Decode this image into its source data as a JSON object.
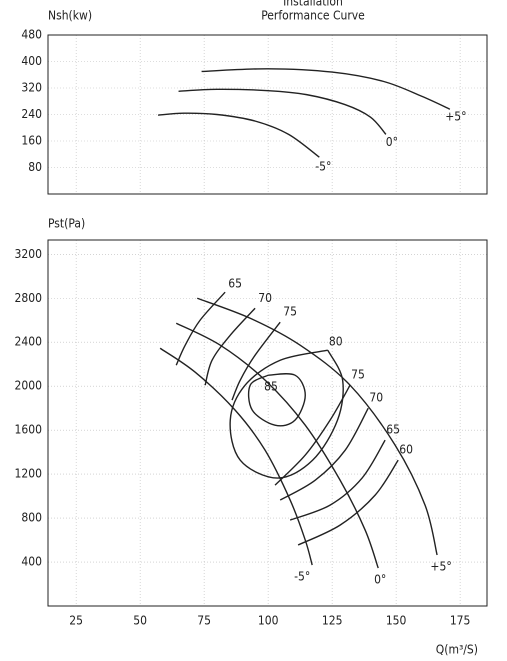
{
  "chart_data": [
    {
      "type": "line",
      "title": "Installation",
      "subtitle": "Performance Curve",
      "ylabel": "Nsh(kw)",
      "xlim": [
        14,
        185.5
      ],
      "xticks": [
        25,
        50,
        75,
        100,
        125,
        150,
        175
      ],
      "ylim": [
        0,
        480
      ],
      "yticks": [
        80,
        160,
        240,
        320,
        400,
        480
      ],
      "grid": true,
      "color": "#222",
      "series": [
        {
          "name": "+5°",
          "x": [
            74,
            100,
            125,
            145,
            160,
            171
          ],
          "values": [
            370,
            378,
            368,
            340,
            295,
            256
          ]
        },
        {
          "name": "0°",
          "x": [
            65,
            80,
            100,
            115,
            130,
            140,
            146
          ],
          "values": [
            310,
            316,
            312,
            300,
            270,
            232,
            180
          ]
        },
        {
          "name": "-5°",
          "x": [
            57,
            67,
            80,
            95,
            108,
            120
          ],
          "values": [
            238,
            244,
            240,
            220,
            180,
            111
          ]
        }
      ]
    },
    {
      "type": "line",
      "ylabel": "Pst(Pa)",
      "xlabel": "Q(m³/S)",
      "xlim": [
        14,
        185.5
      ],
      "xticks": [
        25,
        50,
        75,
        100,
        125,
        150,
        175
      ],
      "ylim": [
        0,
        3330
      ],
      "yticks": [
        400,
        800,
        1200,
        1600,
        2000,
        2400,
        2800,
        3200
      ],
      "grid": true,
      "color": "#222",
      "series": [
        {
          "name": "+5°",
          "x": [
            72.3,
            93.0,
            112.5,
            132.0,
            149.6,
            161.3,
            166.0
          ],
          "values": [
            2800,
            2618,
            2373,
            2009,
            1464,
            918,
            464
          ]
        },
        {
          "name": "0°",
          "x": [
            64.1,
            81.3,
            98.8,
            114.5,
            128.1,
            137.9,
            143.0
          ],
          "values": [
            2573,
            2373,
            2055,
            1645,
            1145,
            691,
            345
          ]
        },
        {
          "name": "-5°",
          "x": [
            57.8,
            71.5,
            87.1,
            98.8,
            108.6,
            114.5,
            117.2
          ],
          "values": [
            2345,
            2127,
            1782,
            1418,
            964,
            600,
            373
          ]
        },
        {
          "name": "65",
          "x": [
            83.2,
            73.4,
            67.6,
            64.1
          ],
          "values": [
            2855,
            2600,
            2373,
            2191
          ]
        },
        {
          "name": "70",
          "x": [
            94.9,
            85.2,
            78.1,
            75.4
          ],
          "values": [
            2709,
            2464,
            2236,
            2009
          ]
        },
        {
          "name": "75",
          "x": [
            104.7,
            94.9,
            89.1,
            85.9
          ],
          "values": [
            2582,
            2282,
            2055,
            1873
          ]
        },
        {
          "name": "80",
          "x": [
            123.3,
            129.1,
            127.1,
            117.4,
            103.7,
            89.1,
            85.2,
            91.0,
            104.7,
            123.3
          ],
          "values": [
            2327,
            2055,
            1691,
            1327,
            1164,
            1327,
            1691,
            2009,
            2236,
            2327
          ]
        },
        {
          "name": "85",
          "x": [
            100,
            110.5,
            114.5,
            110.5,
            102.7,
            93.8,
            93.0,
            100
          ],
          "values": [
            2100,
            2100,
            1918,
            1691,
            1645,
            1782,
            2009,
            2100
          ]
        },
        {
          "name": "75",
          "x": [
            132.0,
            124.2,
            114.5,
            102.7
          ],
          "values": [
            2009,
            1691,
            1373,
            1100
          ]
        },
        {
          "name": "70",
          "x": [
            139.1,
            130.1,
            118.4,
            104.7
          ],
          "values": [
            1800,
            1418,
            1145,
            964
          ]
        },
        {
          "name": "65",
          "x": [
            145.7,
            136.7,
            124.2,
            108.6
          ],
          "values": [
            1509,
            1164,
            918,
            782
          ]
        },
        {
          "name": "60",
          "x": [
            150.8,
            141.8,
            128.1,
            111.7
          ],
          "values": [
            1327,
            1009,
            736,
            555
          ]
        }
      ]
    }
  ]
}
